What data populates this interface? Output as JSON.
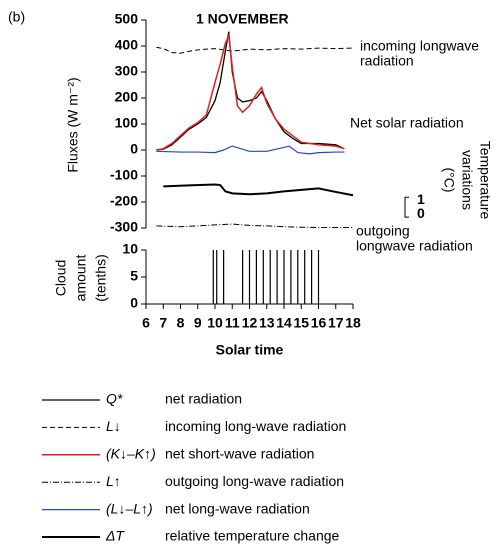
{
  "chart_data": [
    {
      "type": "line",
      "label": "(b)",
      "title": "1 NOVEMBER",
      "ylabel": "Fluxes (W m⁻²)",
      "xlim": [
        6,
        18
      ],
      "ylim": [
        -300,
        500
      ],
      "yticks": [
        -300,
        -200,
        -100,
        0,
        100,
        200,
        300,
        400,
        500
      ],
      "y2label": [
        "Temperature",
        "variations",
        "(°C)"
      ],
      "y2lim": [
        -1,
        14
      ],
      "y2ticks": [
        0,
        1
      ],
      "annotations": [
        {
          "text": [
            "incoming longwave",
            "radiation"
          ],
          "color": "#2233dd"
        },
        {
          "text": [
            "Net solar radiation"
          ],
          "color": "#e02020"
        },
        {
          "text": [
            "outgoing",
            "longwave radiation"
          ],
          "color": "#2233dd"
        }
      ],
      "series": [
        {
          "name": "Q*",
          "description": "net radiation",
          "color": "#000000",
          "dash": "solid",
          "width": 1.3,
          "x": [
            6.6,
            7,
            7.5,
            8,
            8.5,
            9,
            9.5,
            10,
            10.3,
            10.6,
            10.8,
            11,
            11.3,
            11.6,
            12,
            12.4,
            12.7,
            13,
            13.5,
            14,
            14.5,
            15,
            16,
            17,
            17.5
          ],
          "values": [
            0,
            3,
            20,
            50,
            80,
            100,
            125,
            190,
            260,
            380,
            455,
            300,
            200,
            185,
            190,
            200,
            225,
            190,
            120,
            70,
            45,
            25,
            25,
            20,
            5
          ]
        },
        {
          "name": "L↓",
          "description": "incoming long-wave radiation",
          "color": "#000000",
          "dash": "dashed",
          "width": 1,
          "x": [
            6.6,
            7,
            7.5,
            8,
            8.5,
            9,
            9.5,
            10,
            10.5,
            11,
            12,
            13,
            14,
            15,
            16,
            17,
            18
          ],
          "values": [
            395,
            390,
            375,
            372,
            380,
            385,
            388,
            390,
            385,
            380,
            388,
            385,
            390,
            388,
            392,
            390,
            392
          ]
        },
        {
          "name": "(K↓–K↑)",
          "description": "net short-wave radiation",
          "color": "#e02020",
          "dash": "solid",
          "width": 1.5,
          "x": [
            6.6,
            7,
            7.5,
            8,
            8.5,
            9,
            9.5,
            10,
            10.3,
            10.6,
            10.8,
            11,
            11.3,
            11.6,
            12,
            12.4,
            12.7,
            13,
            13.5,
            14,
            14.5,
            15,
            16,
            17,
            17.5
          ],
          "values": [
            0,
            5,
            25,
            55,
            85,
            105,
            135,
            260,
            330,
            410,
            440,
            320,
            170,
            145,
            170,
            215,
            240,
            180,
            120,
            80,
            55,
            30,
            20,
            15,
            5
          ]
        },
        {
          "name": "L↑",
          "description": "outgoing long-wave radiation",
          "color": "#000000",
          "dash": "dashdot",
          "width": 1,
          "x": [
            6.6,
            8,
            9,
            10,
            11,
            12,
            13,
            14,
            15,
            16,
            17,
            18
          ],
          "values": [
            -292,
            -295,
            -292,
            -288,
            -285,
            -290,
            -292,
            -295,
            -297,
            -298,
            -298,
            -298
          ]
        },
        {
          "name": "(L↓–L↑)",
          "description": "net long-wave radiation",
          "color": "#2244dd",
          "dash": "solid",
          "width": 1.2,
          "x": [
            6.6,
            8,
            9,
            10,
            10.5,
            11,
            11.5,
            12,
            13,
            14,
            14.3,
            14.8,
            15.5,
            16,
            17,
            17.5
          ],
          "values": [
            -5,
            -8,
            -8,
            -10,
            0,
            15,
            5,
            -5,
            -5,
            10,
            15,
            -10,
            -15,
            -10,
            -8,
            -8
          ]
        },
        {
          "name": "ΔT",
          "description": "relative temperature change",
          "color": "#000000",
          "dash": "solid",
          "width": 2,
          "axis": "y2",
          "x": [
            7,
            8.5,
            10,
            10.3,
            10.6,
            11,
            12,
            13,
            14,
            15,
            16,
            17,
            18
          ],
          "values": [
            2.0,
            2.07,
            2.14,
            2.1,
            1.64,
            1.5,
            1.43,
            1.5,
            1.64,
            1.75,
            1.86,
            1.6,
            1.36
          ]
        }
      ]
    },
    {
      "type": "spike",
      "ylabel": [
        "Cloud",
        "amount",
        "(tenths)"
      ],
      "xlabel": "Solar time",
      "xlim": [
        6,
        18
      ],
      "xticks": [
        6,
        7,
        8,
        9,
        10,
        11,
        12,
        13,
        14,
        15,
        16,
        17,
        18
      ],
      "ylim": [
        0,
        10
      ],
      "yticks": [
        0,
        5,
        10
      ],
      "color": "#000000",
      "x": [
        9.9,
        10.1,
        10.5,
        11.6,
        12.0,
        12.4,
        12.8,
        13.2,
        13.6,
        14.0,
        14.4,
        14.8,
        15.2,
        15.6,
        16.0
      ],
      "values": [
        10,
        10,
        10,
        10,
        10,
        10,
        10,
        10,
        10,
        10,
        10,
        10,
        10,
        10,
        10
      ]
    }
  ]
}
